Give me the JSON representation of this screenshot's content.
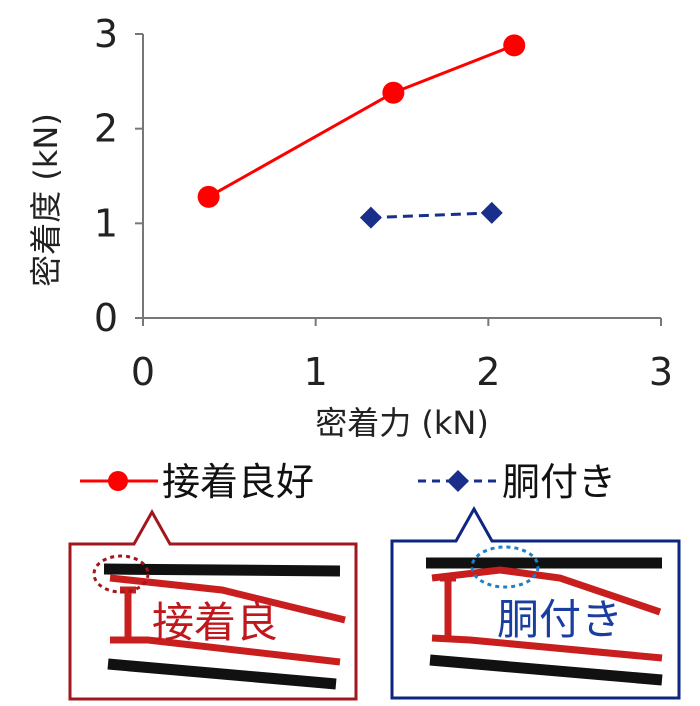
{
  "chart_data": {
    "type": "line",
    "xlabel": "密着力 (kN)",
    "ylabel": "密着度 (kN)",
    "xlim": [
      0,
      3
    ],
    "ylim": [
      0,
      3
    ],
    "xticks": [
      "0",
      "1",
      "2",
      "3"
    ],
    "yticks": [
      "0",
      "1",
      "2",
      "3"
    ],
    "grid": false,
    "legend_position": "bottom",
    "series": [
      {
        "name": "接着良好",
        "color": "#ff0000",
        "line_style": "solid",
        "marker": "circle",
        "x": [
          0.38,
          1.45,
          2.15
        ],
        "y": [
          1.28,
          2.38,
          2.88
        ]
      },
      {
        "name": "胴付き",
        "color": "#1a2f8a",
        "line_style": "dashed",
        "marker": "diamond",
        "x": [
          1.32,
          2.02
        ],
        "y": [
          1.06,
          1.11
        ]
      }
    ]
  },
  "illustrations": [
    {
      "label": "接着良",
      "border_color": "#a0171d",
      "text_color": "#c0171d"
    },
    {
      "label": "胴付き",
      "border_color": "#0d2780",
      "text_color": "#1a3ea0"
    }
  ]
}
